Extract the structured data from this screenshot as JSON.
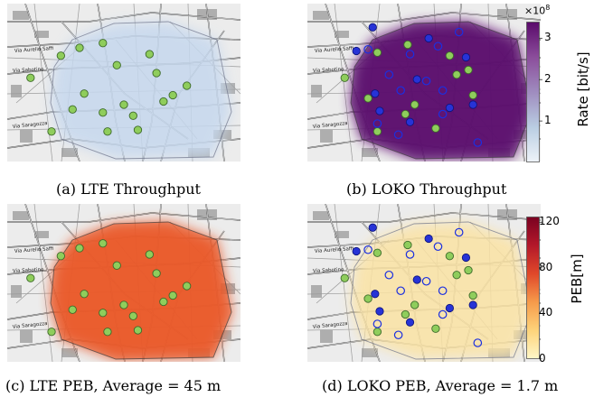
{
  "chart_data": [
    {
      "type": "heatmap",
      "caption": "(a) LTE Throughput",
      "map": {
        "street_labels": [
          "Via Aurelio Saffi",
          "Via Sabotino",
          "Via Saragozza"
        ]
      },
      "heat_color": "#c6d8ee",
      "heat_level": "low",
      "anchors_green": [
        {
          "x": 0.1,
          "y": 0.47
        },
        {
          "x": 0.23,
          "y": 0.33
        },
        {
          "x": 0.31,
          "y": 0.28
        },
        {
          "x": 0.41,
          "y": 0.25
        },
        {
          "x": 0.47,
          "y": 0.39
        },
        {
          "x": 0.61,
          "y": 0.32
        },
        {
          "x": 0.64,
          "y": 0.44
        },
        {
          "x": 0.71,
          "y": 0.58
        },
        {
          "x": 0.77,
          "y": 0.52
        },
        {
          "x": 0.67,
          "y": 0.62
        },
        {
          "x": 0.5,
          "y": 0.64
        },
        {
          "x": 0.41,
          "y": 0.69
        },
        {
          "x": 0.54,
          "y": 0.71
        },
        {
          "x": 0.28,
          "y": 0.67
        },
        {
          "x": 0.56,
          "y": 0.8
        },
        {
          "x": 0.43,
          "y": 0.81
        },
        {
          "x": 0.19,
          "y": 0.81
        },
        {
          "x": 0.33,
          "y": 0.57
        }
      ]
    },
    {
      "type": "heatmap",
      "caption": "(b) LOKO Throughput",
      "map": {
        "street_labels": [
          "Via Aurelio Saffi",
          "Via Sabotino",
          "Via Saragozza"
        ]
      },
      "heat_color": "#5b116e",
      "heat_level": "high",
      "anchors_green": [
        {
          "x": 0.16,
          "y": 0.47
        },
        {
          "x": 0.3,
          "y": 0.31
        },
        {
          "x": 0.43,
          "y": 0.26
        },
        {
          "x": 0.61,
          "y": 0.33
        },
        {
          "x": 0.64,
          "y": 0.45
        },
        {
          "x": 0.71,
          "y": 0.58
        },
        {
          "x": 0.46,
          "y": 0.64
        },
        {
          "x": 0.42,
          "y": 0.7
        },
        {
          "x": 0.55,
          "y": 0.79
        },
        {
          "x": 0.3,
          "y": 0.81
        },
        {
          "x": 0.26,
          "y": 0.6
        },
        {
          "x": 0.69,
          "y": 0.42
        }
      ],
      "anchors_blue_open": [
        {
          "x": 0.26,
          "y": 0.29
        },
        {
          "x": 0.44,
          "y": 0.32
        },
        {
          "x": 0.56,
          "y": 0.27
        },
        {
          "x": 0.65,
          "y": 0.18
        },
        {
          "x": 0.35,
          "y": 0.45
        },
        {
          "x": 0.51,
          "y": 0.49
        },
        {
          "x": 0.58,
          "y": 0.55
        },
        {
          "x": 0.4,
          "y": 0.55
        },
        {
          "x": 0.3,
          "y": 0.76
        },
        {
          "x": 0.58,
          "y": 0.7
        },
        {
          "x": 0.39,
          "y": 0.83
        },
        {
          "x": 0.73,
          "y": 0.88
        }
      ],
      "anchors_blue_filled": [
        {
          "x": 0.28,
          "y": 0.15
        },
        {
          "x": 0.21,
          "y": 0.3
        },
        {
          "x": 0.52,
          "y": 0.22
        },
        {
          "x": 0.68,
          "y": 0.34
        },
        {
          "x": 0.29,
          "y": 0.57
        },
        {
          "x": 0.47,
          "y": 0.48
        },
        {
          "x": 0.31,
          "y": 0.68
        },
        {
          "x": 0.61,
          "y": 0.66
        },
        {
          "x": 0.71,
          "y": 0.64
        },
        {
          "x": 0.44,
          "y": 0.75
        }
      ],
      "colorbar": {
        "title": "Rate [bit/s]",
        "multiplier": "×10",
        "exponent": "8",
        "ticks": [
          "1",
          "2",
          "3"
        ],
        "tick_values": [
          1,
          2,
          3
        ],
        "range": [
          0,
          3.4
        ],
        "colors": [
          "#eef3f9",
          "#b9cde2",
          "#9f8cbf",
          "#8b4d9b",
          "#5a0a6b"
        ]
      }
    },
    {
      "type": "heatmap",
      "caption": "(c) LTE PEB, Average = 45 m",
      "map": {
        "street_labels": [
          "Via Aurelio Saffi",
          "Via Sabotino",
          "Via Saragozza"
        ]
      },
      "heat_color": "#ea5a2a",
      "heat_level": "high",
      "anchors_green": [
        {
          "x": 0.1,
          "y": 0.47
        },
        {
          "x": 0.23,
          "y": 0.33
        },
        {
          "x": 0.31,
          "y": 0.28
        },
        {
          "x": 0.41,
          "y": 0.25
        },
        {
          "x": 0.47,
          "y": 0.39
        },
        {
          "x": 0.61,
          "y": 0.32
        },
        {
          "x": 0.64,
          "y": 0.44
        },
        {
          "x": 0.71,
          "y": 0.58
        },
        {
          "x": 0.77,
          "y": 0.52
        },
        {
          "x": 0.67,
          "y": 0.62
        },
        {
          "x": 0.5,
          "y": 0.64
        },
        {
          "x": 0.41,
          "y": 0.69
        },
        {
          "x": 0.54,
          "y": 0.71
        },
        {
          "x": 0.28,
          "y": 0.67
        },
        {
          "x": 0.56,
          "y": 0.8
        },
        {
          "x": 0.43,
          "y": 0.81
        },
        {
          "x": 0.19,
          "y": 0.81
        },
        {
          "x": 0.33,
          "y": 0.57
        }
      ]
    },
    {
      "type": "heatmap",
      "caption": "(d) LOKO PEB, Average = 1.7 m",
      "map": {
        "street_labels": [
          "Via Aurelio Saffi",
          "Via Sabotino",
          "Via Saragozza"
        ]
      },
      "heat_color": "#fbe3a4",
      "heat_level": "low",
      "anchors_green": [
        {
          "x": 0.16,
          "y": 0.47
        },
        {
          "x": 0.3,
          "y": 0.31
        },
        {
          "x": 0.43,
          "y": 0.26
        },
        {
          "x": 0.61,
          "y": 0.33
        },
        {
          "x": 0.64,
          "y": 0.45
        },
        {
          "x": 0.71,
          "y": 0.58
        },
        {
          "x": 0.46,
          "y": 0.64
        },
        {
          "x": 0.42,
          "y": 0.7
        },
        {
          "x": 0.55,
          "y": 0.79
        },
        {
          "x": 0.3,
          "y": 0.81
        },
        {
          "x": 0.26,
          "y": 0.6
        },
        {
          "x": 0.69,
          "y": 0.42
        }
      ],
      "anchors_blue_open": [
        {
          "x": 0.26,
          "y": 0.29
        },
        {
          "x": 0.44,
          "y": 0.32
        },
        {
          "x": 0.56,
          "y": 0.27
        },
        {
          "x": 0.65,
          "y": 0.18
        },
        {
          "x": 0.35,
          "y": 0.45
        },
        {
          "x": 0.51,
          "y": 0.49
        },
        {
          "x": 0.58,
          "y": 0.55
        },
        {
          "x": 0.4,
          "y": 0.55
        },
        {
          "x": 0.3,
          "y": 0.76
        },
        {
          "x": 0.58,
          "y": 0.7
        },
        {
          "x": 0.39,
          "y": 0.83
        },
        {
          "x": 0.73,
          "y": 0.88
        }
      ],
      "anchors_blue_filled": [
        {
          "x": 0.28,
          "y": 0.15
        },
        {
          "x": 0.21,
          "y": 0.3
        },
        {
          "x": 0.52,
          "y": 0.22
        },
        {
          "x": 0.68,
          "y": 0.34
        },
        {
          "x": 0.29,
          "y": 0.57
        },
        {
          "x": 0.47,
          "y": 0.48
        },
        {
          "x": 0.31,
          "y": 0.68
        },
        {
          "x": 0.61,
          "y": 0.66
        },
        {
          "x": 0.71,
          "y": 0.64
        },
        {
          "x": 0.44,
          "y": 0.75
        }
      ],
      "colorbar": {
        "title": "PEB[m]",
        "ticks": [
          "0",
          "40",
          "80",
          "120"
        ],
        "tick_values": [
          0,
          40,
          80,
          120
        ],
        "range": [
          0,
          125
        ],
        "colors": [
          "#fff7c8",
          "#fdd37a",
          "#f69a4a",
          "#e0482a",
          "#b3182a",
          "#7a0221"
        ]
      }
    }
  ]
}
